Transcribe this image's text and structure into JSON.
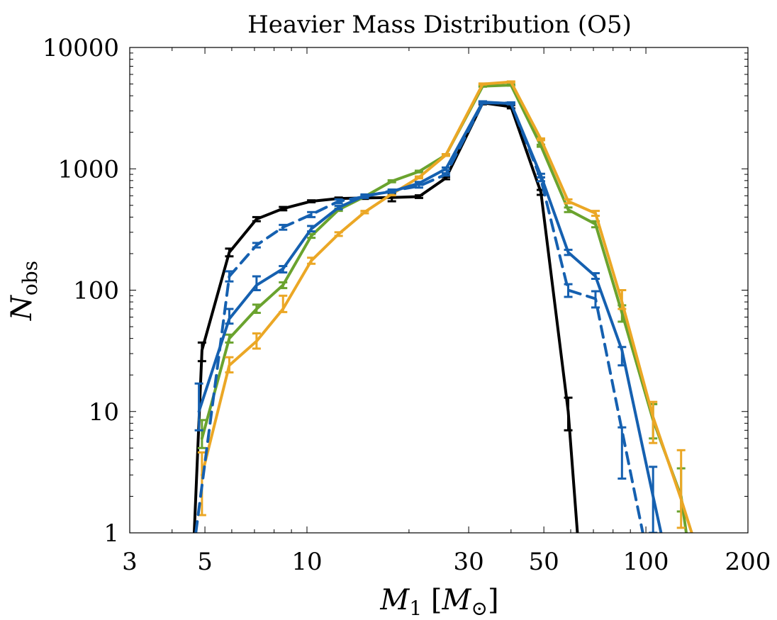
{
  "chart_data": {
    "type": "line",
    "title": "Heavier Mass Distribution (O5)",
    "xlabel": "M_1 [M_⊙]",
    "ylabel": "N_obs",
    "xscale": "log",
    "yscale": "log",
    "xlim": [
      3,
      200
    ],
    "ylim": [
      1,
      10000
    ],
    "xticks": [
      3,
      5,
      10,
      30,
      50,
      100,
      200
    ],
    "xtick_labels": [
      "3",
      "5",
      "10",
      "30",
      "50",
      "100",
      "200"
    ],
    "yticks": [
      1,
      10,
      100,
      1000,
      10000
    ],
    "ytick_labels": [
      "1",
      "10",
      "100",
      "1000",
      "10000"
    ],
    "grid": false,
    "legend": "none",
    "series": [
      {
        "name": "black",
        "color": "#000000",
        "dashed": false,
        "x": [
          4.6,
          4.9,
          5.9,
          7.1,
          8.5,
          10.3,
          12.4,
          14.8,
          17.8,
          21.4,
          25.7,
          33,
          40,
          49,
          59,
          64
        ],
        "y": [
          0.5,
          32,
          205,
          385,
          470,
          540,
          570,
          575,
          580,
          590,
          840,
          3500,
          3250,
          640,
          10,
          0.5
        ],
        "err_lo": [
          null,
          26,
          190,
          370,
          455,
          530,
          560,
          565,
          540,
          575,
          820,
          3400,
          3150,
          610,
          7,
          null
        ],
        "err_hi": [
          null,
          37,
          220,
          400,
          485,
          550,
          580,
          585,
          620,
          605,
          860,
          3600,
          3350,
          670,
          13,
          null
        ]
      },
      {
        "name": "green",
        "color": "#6aa32e",
        "dashed": false,
        "x": [
          4.9,
          5.9,
          7.1,
          8.5,
          10.3,
          12.4,
          14.8,
          17.8,
          21.4,
          25.7,
          33,
          40,
          49,
          59,
          71,
          85,
          105,
          127,
          135
        ],
        "y": [
          6,
          40,
          70,
          110,
          280,
          460,
          590,
          790,
          950,
          1300,
          4800,
          4900,
          1550,
          460,
          350,
          65,
          8.5,
          2,
          0.6
        ],
        "err_lo": [
          5,
          37,
          65,
          104,
          270,
          450,
          580,
          775,
          935,
          1280,
          4750,
          4850,
          1520,
          440,
          330,
          55,
          6,
          1.5,
          null
        ],
        "err_hi": [
          8.5,
          43,
          76,
          116,
          290,
          470,
          600,
          805,
          965,
          1320,
          4850,
          4950,
          1580,
          480,
          370,
          75,
          11.5,
          3.4,
          null
        ]
      },
      {
        "name": "orange",
        "color": "#eba725",
        "dashed": false,
        "x": [
          4.9,
          5.9,
          7.1,
          8.5,
          10.3,
          12.4,
          14.8,
          17.8,
          21.4,
          25.7,
          33,
          40,
          49,
          59,
          71,
          85,
          105,
          127,
          140
        ],
        "y": [
          3,
          24,
          38,
          70,
          175,
          290,
          440,
          620,
          850,
          1300,
          5000,
          5200,
          1750,
          540,
          430,
          80,
          9,
          1.9,
          0.8
        ],
        "err_lo": [
          1.4,
          21,
          33,
          66,
          165,
          280,
          430,
          605,
          835,
          1280,
          4950,
          5150,
          1720,
          520,
          410,
          70,
          5.5,
          1.1,
          null
        ],
        "err_hi": [
          4.6,
          28,
          44,
          90,
          185,
          300,
          450,
          635,
          865,
          1320,
          5050,
          5250,
          1780,
          560,
          450,
          100,
          12,
          4.8,
          null
        ]
      },
      {
        "name": "blue-solid",
        "color": "#1560b0",
        "dashed": false,
        "x": [
          4.8,
          5.9,
          7.1,
          8.5,
          10.3,
          12.4,
          14.8,
          17.8,
          21.4,
          25.7,
          33,
          40,
          49,
          59,
          71,
          85,
          105,
          117
        ],
        "y": [
          10,
          58,
          110,
          150,
          320,
          480,
          600,
          650,
          760,
          1000,
          3550,
          3450,
          880,
          205,
          130,
          32,
          2,
          0.5
        ],
        "err_lo": [
          7,
          53,
          100,
          140,
          305,
          465,
          585,
          635,
          740,
          975,
          3500,
          3400,
          850,
          195,
          124,
          24,
          1,
          null
        ],
        "err_hi": [
          17,
          70,
          130,
          158,
          338,
          495,
          615,
          665,
          780,
          1025,
          3600,
          3500,
          910,
          215,
          138,
          34,
          3.5,
          null
        ]
      },
      {
        "name": "blue-dashed",
        "color": "#1560b0",
        "dashed": true,
        "x": [
          4.7,
          5.9,
          7.1,
          8.5,
          10.3,
          12.4,
          14.8,
          17.8,
          21.4,
          25.7,
          33,
          40,
          49,
          59,
          71,
          85,
          103
        ],
        "y": [
          1,
          130,
          235,
          330,
          420,
          540,
          590,
          660,
          720,
          900,
          3500,
          3480,
          820,
          100,
          85,
          7,
          0.5
        ],
        "err_lo": [
          null,
          118,
          225,
          315,
          400,
          520,
          575,
          645,
          700,
          880,
          3450,
          3430,
          790,
          88,
          72,
          2.8,
          null
        ],
        "err_hi": [
          null,
          143,
          245,
          345,
          440,
          560,
          605,
          675,
          740,
          920,
          3550,
          3530,
          850,
          112,
          98,
          7.4,
          null
        ]
      }
    ]
  }
}
